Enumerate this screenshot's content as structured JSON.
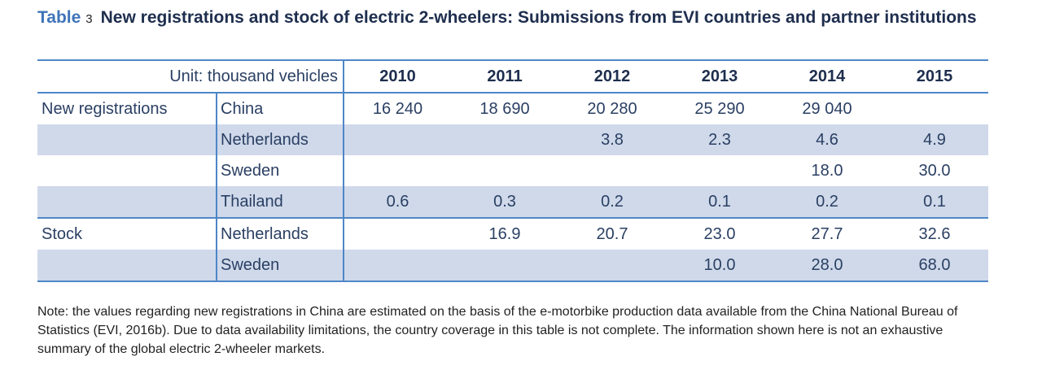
{
  "caption": {
    "label": "Table",
    "number": "3",
    "title": "New registrations and stock of electric 2-wheelers: Submissions from EVI countries and partner institutions"
  },
  "table": {
    "unit": "Unit: thousand vehicles",
    "years": [
      "2010",
      "2011",
      "2012",
      "2013",
      "2014",
      "2015"
    ],
    "groups": [
      {
        "name": "New registrations",
        "rows": [
          {
            "country": "China",
            "values": [
              "16 240",
              "18 690",
              "20 280",
              "25 290",
              "29 040",
              ""
            ]
          },
          {
            "country": "Netherlands",
            "values": [
              "",
              "",
              "3.8",
              "2.3",
              "4.6",
              "4.9"
            ]
          },
          {
            "country": "Sweden",
            "values": [
              "",
              "",
              "",
              "",
              "18.0",
              "30.0"
            ]
          },
          {
            "country": "Thailand",
            "values": [
              "0.6",
              "0.3",
              "0.2",
              "0.1",
              "0.2",
              "0.1"
            ]
          }
        ]
      },
      {
        "name": "Stock",
        "rows": [
          {
            "country": "Netherlands",
            "values": [
              "",
              "16.9",
              "20.7",
              "23.0",
              "27.7",
              "32.6"
            ]
          },
          {
            "country": "Sweden",
            "values": [
              "",
              "",
              "",
              "10.0",
              "28.0",
              "68.0"
            ]
          }
        ]
      }
    ]
  },
  "note": "Note: the values regarding new registrations in China are estimated on the basis of the e-motorbike production data available from the China National Bureau of Statistics (EVI, 2016b). Due to data availability limitations, the country coverage in this table is not complete. The information shown here is not an exhaustive summary of the global electric 2-wheeler markets."
}
